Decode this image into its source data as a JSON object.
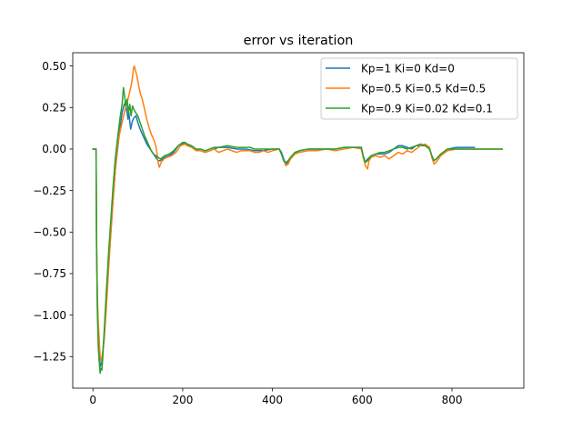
{
  "chart_data": {
    "type": "line",
    "title": "error vs iteration",
    "xlabel": "",
    "ylabel": "",
    "xlim": [
      -45,
      960
    ],
    "ylim": [
      -1.44,
      0.58
    ],
    "xticks": [
      0,
      200,
      400,
      600,
      800
    ],
    "xtick_labels": [
      "0",
      "200",
      "400",
      "600",
      "800"
    ],
    "yticks": [
      0.5,
      0.25,
      0.0,
      -0.25,
      -0.5,
      -0.75,
      -1.0,
      -1.25
    ],
    "ytick_labels": [
      "0.50",
      "0.25",
      "0.00",
      "−0.25",
      "−0.50",
      "−0.75",
      "−1.00",
      "−1.25"
    ],
    "grid": false,
    "legend_position": "top-right",
    "series": [
      {
        "name": "Kp=1 Ki=0 Kd=0",
        "color": "#1f77b4",
        "points": [
          [
            0,
            0
          ],
          [
            7,
            0
          ],
          [
            8,
            -0.55
          ],
          [
            10,
            -0.95
          ],
          [
            12,
            -1.1
          ],
          [
            14,
            -1.2
          ],
          [
            16,
            -1.31
          ],
          [
            18,
            -1.3
          ],
          [
            20,
            -1.28
          ],
          [
            22,
            -1.22
          ],
          [
            25,
            -1.12
          ],
          [
            30,
            -0.9
          ],
          [
            35,
            -0.7
          ],
          [
            40,
            -0.5
          ],
          [
            45,
            -0.3
          ],
          [
            50,
            -0.12
          ],
          [
            55,
            0.0
          ],
          [
            60,
            0.12
          ],
          [
            65,
            0.22
          ],
          [
            70,
            0.27
          ],
          [
            72,
            0.28
          ],
          [
            75,
            0.24
          ],
          [
            78,
            0.18
          ],
          [
            80,
            0.22
          ],
          [
            84,
            0.12
          ],
          [
            88,
            0.17
          ],
          [
            92,
            0.19
          ],
          [
            96,
            0.2
          ],
          [
            100,
            0.16
          ],
          [
            105,
            0.12
          ],
          [
            110,
            0.09
          ],
          [
            115,
            0.06
          ],
          [
            120,
            0.03
          ],
          [
            125,
            0.01
          ],
          [
            130,
            -0.01
          ],
          [
            135,
            -0.03
          ],
          [
            140,
            -0.05
          ],
          [
            145,
            -0.07
          ],
          [
            150,
            -0.07
          ],
          [
            155,
            -0.06
          ],
          [
            160,
            -0.05
          ],
          [
            170,
            -0.04
          ],
          [
            180,
            -0.02
          ],
          [
            190,
            0.02
          ],
          [
            200,
            0.03
          ],
          [
            205,
            0.04
          ],
          [
            210,
            0.03
          ],
          [
            215,
            0.02
          ],
          [
            220,
            0.01
          ],
          [
            230,
            0.0
          ],
          [
            240,
            -0.01
          ],
          [
            250,
            -0.02
          ],
          [
            260,
            -0.01
          ],
          [
            270,
            0.0
          ],
          [
            280,
            0.01
          ],
          [
            300,
            0.01
          ],
          [
            320,
            0.0
          ],
          [
            340,
            0.0
          ],
          [
            360,
            -0.01
          ],
          [
            380,
            -0.01
          ],
          [
            400,
            0.0
          ],
          [
            415,
            0.0
          ],
          [
            420,
            -0.02
          ],
          [
            425,
            -0.06
          ],
          [
            430,
            -0.09
          ],
          [
            435,
            -0.08
          ],
          [
            440,
            -0.06
          ],
          [
            450,
            -0.03
          ],
          [
            460,
            -0.01
          ],
          [
            480,
            0.0
          ],
          [
            500,
            0.0
          ],
          [
            520,
            0.0
          ],
          [
            540,
            0.0
          ],
          [
            560,
            0.01
          ],
          [
            580,
            0.01
          ],
          [
            598,
            0.01
          ],
          [
            602,
            -0.04
          ],
          [
            607,
            -0.08
          ],
          [
            612,
            -0.06
          ],
          [
            620,
            -0.04
          ],
          [
            630,
            -0.03
          ],
          [
            640,
            -0.03
          ],
          [
            650,
            -0.03
          ],
          [
            660,
            -0.02
          ],
          [
            670,
            0.0
          ],
          [
            680,
            0.02
          ],
          [
            690,
            0.02
          ],
          [
            700,
            0.01
          ],
          [
            710,
            0.0
          ],
          [
            720,
            0.02
          ],
          [
            730,
            0.02
          ],
          [
            740,
            0.02
          ],
          [
            750,
            0.0
          ],
          [
            755,
            -0.04
          ],
          [
            760,
            -0.07
          ],
          [
            765,
            -0.06
          ],
          [
            775,
            -0.03
          ],
          [
            790,
            0.0
          ],
          [
            810,
            0.01
          ],
          [
            830,
            0.01
          ],
          [
            850,
            0.01
          ]
        ]
      },
      {
        "name": "Kp=0.5 Ki=0.5 Kd=0.5",
        "color": "#ff7f0e",
        "points": [
          [
            0,
            0
          ],
          [
            7,
            0
          ],
          [
            8,
            -0.5
          ],
          [
            10,
            -0.9
          ],
          [
            12,
            -1.05
          ],
          [
            14,
            -1.15
          ],
          [
            16,
            -1.25
          ],
          [
            18,
            -1.27
          ],
          [
            20,
            -1.25
          ],
          [
            22,
            -1.22
          ],
          [
            25,
            -1.15
          ],
          [
            30,
            -0.95
          ],
          [
            35,
            -0.72
          ],
          [
            40,
            -0.5
          ],
          [
            45,
            -0.3
          ],
          [
            50,
            -0.12
          ],
          [
            55,
            0.02
          ],
          [
            60,
            0.1
          ],
          [
            65,
            0.16
          ],
          [
            70,
            0.22
          ],
          [
            75,
            0.27
          ],
          [
            80,
            0.32
          ],
          [
            85,
            0.38
          ],
          [
            88,
            0.43
          ],
          [
            90,
            0.48
          ],
          [
            92,
            0.5
          ],
          [
            95,
            0.47
          ],
          [
            98,
            0.44
          ],
          [
            102,
            0.38
          ],
          [
            106,
            0.33
          ],
          [
            110,
            0.3
          ],
          [
            115,
            0.24
          ],
          [
            120,
            0.18
          ],
          [
            125,
            0.13
          ],
          [
            130,
            0.09
          ],
          [
            135,
            0.06
          ],
          [
            140,
            0.02
          ],
          [
            143,
            -0.03
          ],
          [
            145,
            -0.08
          ],
          [
            148,
            -0.11
          ],
          [
            152,
            -0.08
          ],
          [
            158,
            -0.06
          ],
          [
            165,
            -0.05
          ],
          [
            175,
            -0.04
          ],
          [
            185,
            -0.02
          ],
          [
            195,
            0.02
          ],
          [
            205,
            0.03
          ],
          [
            210,
            0.02
          ],
          [
            220,
            0.01
          ],
          [
            230,
            -0.01
          ],
          [
            240,
            -0.01
          ],
          [
            250,
            -0.02
          ],
          [
            260,
            -0.01
          ],
          [
            270,
            0.0
          ],
          [
            280,
            -0.02
          ],
          [
            290,
            -0.01
          ],
          [
            300,
            0.0
          ],
          [
            310,
            -0.01
          ],
          [
            320,
            -0.02
          ],
          [
            330,
            -0.01
          ],
          [
            340,
            -0.01
          ],
          [
            350,
            -0.01
          ],
          [
            360,
            -0.02
          ],
          [
            370,
            -0.02
          ],
          [
            380,
            -0.01
          ],
          [
            390,
            -0.02
          ],
          [
            400,
            -0.01
          ],
          [
            415,
            0.0
          ],
          [
            420,
            -0.03
          ],
          [
            425,
            -0.07
          ],
          [
            430,
            -0.1
          ],
          [
            435,
            -0.09
          ],
          [
            440,
            -0.06
          ],
          [
            450,
            -0.03
          ],
          [
            460,
            -0.02
          ],
          [
            480,
            -0.01
          ],
          [
            500,
            -0.01
          ],
          [
            520,
            0.0
          ],
          [
            540,
            -0.01
          ],
          [
            560,
            0.0
          ],
          [
            580,
            0.01
          ],
          [
            598,
            0.0
          ],
          [
            602,
            -0.05
          ],
          [
            607,
            -0.1
          ],
          [
            612,
            -0.12
          ],
          [
            615,
            -0.07
          ],
          [
            620,
            -0.05
          ],
          [
            630,
            -0.04
          ],
          [
            640,
            -0.05
          ],
          [
            650,
            -0.04
          ],
          [
            660,
            -0.06
          ],
          [
            670,
            -0.04
          ],
          [
            680,
            -0.02
          ],
          [
            690,
            -0.03
          ],
          [
            700,
            -0.01
          ],
          [
            710,
            -0.02
          ],
          [
            720,
            0.0
          ],
          [
            730,
            0.02
          ],
          [
            740,
            0.03
          ],
          [
            750,
            0.01
          ],
          [
            755,
            -0.05
          ],
          [
            760,
            -0.09
          ],
          [
            765,
            -0.08
          ],
          [
            775,
            -0.04
          ],
          [
            790,
            -0.01
          ],
          [
            810,
            0.0
          ],
          [
            830,
            0.0
          ],
          [
            850,
            0.0
          ],
          [
            880,
            0.0
          ],
          [
            912,
            0.0
          ]
        ]
      },
      {
        "name": "Kp=0.9 Ki=0.02 Kd=0.1",
        "color": "#2ca02c",
        "points": [
          [
            0,
            0
          ],
          [
            7,
            0
          ],
          [
            8,
            -0.6
          ],
          [
            10,
            -1.0
          ],
          [
            12,
            -1.2
          ],
          [
            14,
            -1.28
          ],
          [
            16,
            -1.35
          ],
          [
            18,
            -1.32
          ],
          [
            20,
            -1.33
          ],
          [
            22,
            -1.25
          ],
          [
            25,
            -1.1
          ],
          [
            30,
            -0.85
          ],
          [
            35,
            -0.62
          ],
          [
            40,
            -0.42
          ],
          [
            45,
            -0.22
          ],
          [
            50,
            -0.05
          ],
          [
            55,
            0.07
          ],
          [
            60,
            0.18
          ],
          [
            65,
            0.27
          ],
          [
            68,
            0.37
          ],
          [
            70,
            0.33
          ],
          [
            73,
            0.26
          ],
          [
            76,
            0.3
          ],
          [
            79,
            0.22
          ],
          [
            82,
            0.27
          ],
          [
            85,
            0.2
          ],
          [
            88,
            0.26
          ],
          [
            91,
            0.24
          ],
          [
            95,
            0.22
          ],
          [
            100,
            0.2
          ],
          [
            105,
            0.16
          ],
          [
            110,
            0.12
          ],
          [
            115,
            0.08
          ],
          [
            120,
            0.05
          ],
          [
            125,
            0.02
          ],
          [
            130,
            -0.01
          ],
          [
            135,
            -0.03
          ],
          [
            140,
            -0.04
          ],
          [
            145,
            -0.05
          ],
          [
            150,
            -0.06
          ],
          [
            155,
            -0.05
          ],
          [
            160,
            -0.04
          ],
          [
            170,
            -0.03
          ],
          [
            180,
            -0.01
          ],
          [
            190,
            0.02
          ],
          [
            200,
            0.04
          ],
          [
            205,
            0.04
          ],
          [
            210,
            0.03
          ],
          [
            220,
            0.02
          ],
          [
            230,
            0.0
          ],
          [
            240,
            0.0
          ],
          [
            250,
            -0.01
          ],
          [
            260,
            0.0
          ],
          [
            270,
            0.01
          ],
          [
            280,
            0.01
          ],
          [
            300,
            0.02
          ],
          [
            320,
            0.01
          ],
          [
            340,
            0.01
          ],
          [
            350,
            0.01
          ],
          [
            360,
            0.0
          ],
          [
            380,
            0.0
          ],
          [
            400,
            0.0
          ],
          [
            415,
            0.0
          ],
          [
            420,
            -0.03
          ],
          [
            425,
            -0.07
          ],
          [
            430,
            -0.08
          ],
          [
            435,
            -0.07
          ],
          [
            440,
            -0.05
          ],
          [
            450,
            -0.02
          ],
          [
            460,
            -0.01
          ],
          [
            480,
            0.0
          ],
          [
            500,
            0.0
          ],
          [
            520,
            0.0
          ],
          [
            540,
            0.0
          ],
          [
            560,
            0.01
          ],
          [
            580,
            0.01
          ],
          [
            598,
            0.01
          ],
          [
            602,
            -0.04
          ],
          [
            607,
            -0.08
          ],
          [
            612,
            -0.07
          ],
          [
            620,
            -0.04
          ],
          [
            630,
            -0.03
          ],
          [
            640,
            -0.02
          ],
          [
            650,
            -0.02
          ],
          [
            660,
            -0.01
          ],
          [
            670,
            0.0
          ],
          [
            680,
            0.01
          ],
          [
            690,
            0.01
          ],
          [
            700,
            0.0
          ],
          [
            710,
            0.01
          ],
          [
            720,
            0.02
          ],
          [
            730,
            0.03
          ],
          [
            740,
            0.02
          ],
          [
            750,
            0.0
          ],
          [
            755,
            -0.04
          ],
          [
            760,
            -0.07
          ],
          [
            765,
            -0.06
          ],
          [
            775,
            -0.03
          ],
          [
            790,
            0.0
          ],
          [
            810,
            0.0
          ],
          [
            830,
            0.0
          ],
          [
            850,
            0.0
          ],
          [
            880,
            0.0
          ],
          [
            912,
            0.0
          ]
        ]
      }
    ]
  }
}
